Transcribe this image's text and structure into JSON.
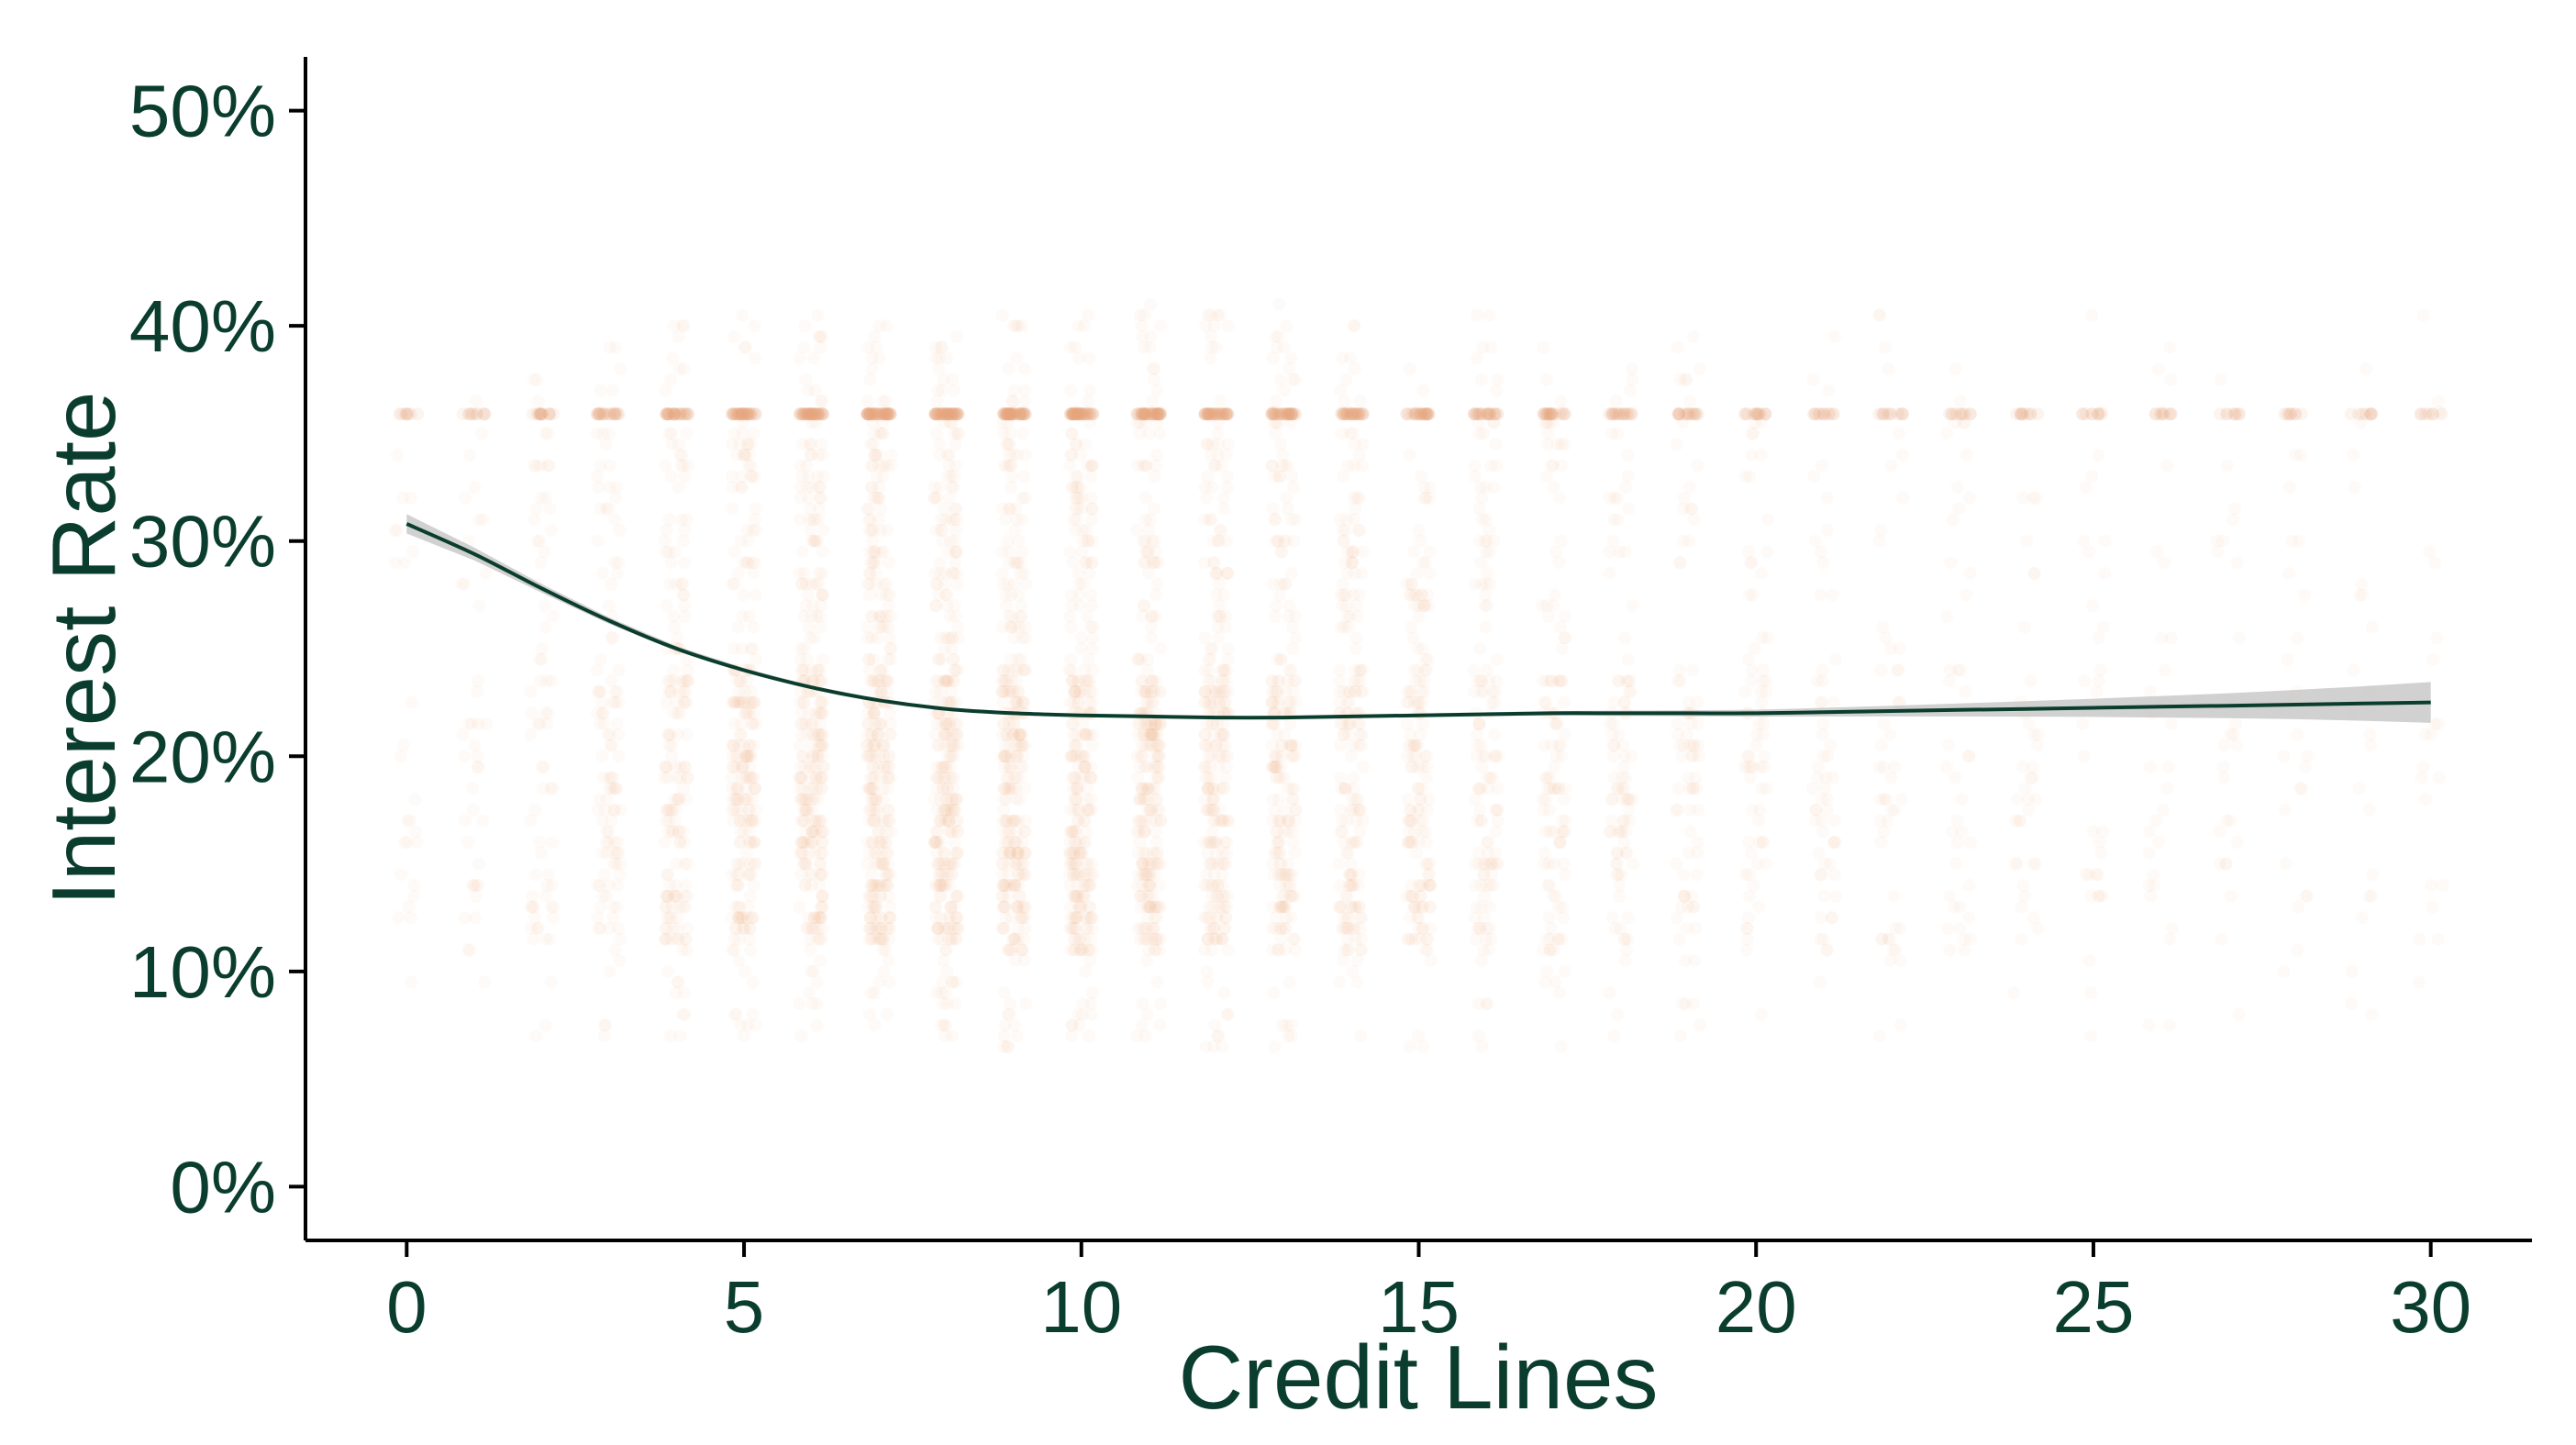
{
  "chart_data": {
    "type": "scatter",
    "title": "",
    "xlabel": "Credit Lines",
    "ylabel": "Interest Rate",
    "xlim": [
      -1.5,
      31.5
    ],
    "ylim": [
      -2.5,
      52.5
    ],
    "grid": false,
    "legend": "none",
    "x_ticks": [
      0,
      5,
      10,
      15,
      20,
      25,
      30
    ],
    "x_tick_labels": [
      "0",
      "5",
      "10",
      "15",
      "20",
      "25",
      "30"
    ],
    "y_ticks": [
      0,
      10,
      20,
      30,
      40,
      50
    ],
    "y_tick_labels": [
      "0%",
      "10%",
      "20%",
      "30%",
      "40%",
      "50%"
    ],
    "colors": {
      "points": "#e8a878",
      "trend_line": "#0b3d2e",
      "confidence_band": "#bdbdbd",
      "text": "#0b3d2e"
    },
    "scatter_density": {
      "x_values": [
        0,
        1,
        2,
        3,
        4,
        5,
        6,
        7,
        8,
        9,
        10,
        11,
        12,
        13,
        14,
        15,
        16,
        17,
        18,
        19,
        20,
        21,
        22,
        23,
        24,
        25,
        26,
        27,
        28,
        29,
        30
      ],
      "relative_count": [
        0.05,
        0.1,
        0.2,
        0.35,
        0.55,
        0.75,
        0.9,
        1.0,
        1.0,
        0.98,
        0.95,
        0.88,
        0.8,
        0.7,
        0.6,
        0.5,
        0.42,
        0.35,
        0.29,
        0.24,
        0.2,
        0.16,
        0.13,
        0.11,
        0.09,
        0.075,
        0.065,
        0.055,
        0.045,
        0.04,
        0.035
      ],
      "rate_min": 6.5,
      "rate_max": 41,
      "cap_rate": 35.9
    },
    "series": [
      {
        "type": "smooth",
        "x": [
          0,
          1,
          2,
          3,
          4,
          5,
          6,
          7,
          8,
          9,
          10,
          11,
          12,
          13,
          14,
          15,
          16,
          17,
          18,
          19,
          20,
          21,
          22,
          23,
          24,
          25,
          26,
          27,
          28,
          29,
          30
        ],
        "y": [
          30.8,
          29.4,
          27.8,
          26.3,
          25.0,
          24.0,
          23.2,
          22.6,
          22.2,
          22.0,
          21.9,
          21.85,
          21.8,
          21.8,
          21.85,
          21.9,
          21.95,
          22.0,
          22.0,
          22.0,
          22.0,
          22.05,
          22.1,
          22.15,
          22.2,
          22.25,
          22.3,
          22.35,
          22.4,
          22.45,
          22.5
        ],
        "ci_half_width": [
          0.45,
          0.3,
          0.2,
          0.15,
          0.12,
          0.1,
          0.08,
          0.07,
          0.06,
          0.06,
          0.06,
          0.06,
          0.06,
          0.07,
          0.07,
          0.08,
          0.09,
          0.1,
          0.12,
          0.14,
          0.16,
          0.2,
          0.25,
          0.3,
          0.36,
          0.42,
          0.5,
          0.58,
          0.68,
          0.8,
          0.95
        ]
      }
    ]
  }
}
